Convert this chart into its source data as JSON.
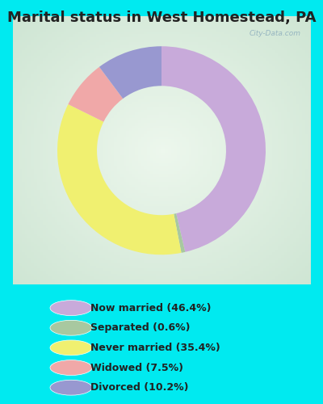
{
  "title": "Marital status in West Homestead, PA",
  "slices": [
    46.4,
    0.6,
    35.4,
    7.5,
    10.2
  ],
  "colors": [
    "#c8aada",
    "#a8c8a0",
    "#f0f070",
    "#f0a8a8",
    "#9898d0"
  ],
  "labels": [
    "Now married (46.4%)",
    "Separated (0.6%)",
    "Never married (35.4%)",
    "Widowed (7.5%)",
    "Divorced (10.2%)"
  ],
  "bg_cyan": "#00eaf0",
  "title_fontsize": 13,
  "watermark": "City-Data.com",
  "start_angle": 90,
  "donut_width": 0.38
}
